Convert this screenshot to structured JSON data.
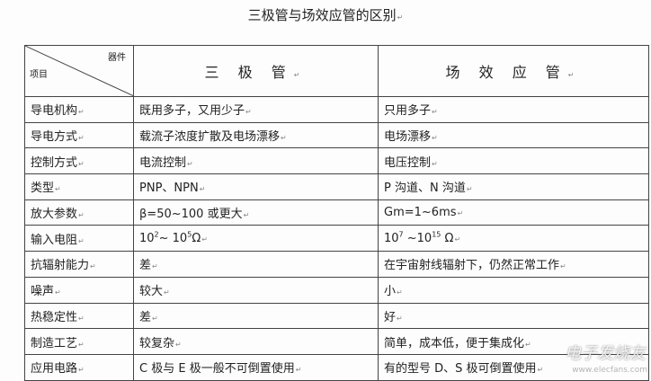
{
  "title": "三极管与场效应管的区别",
  "header": {
    "corner_top": "器件",
    "corner_bottom": "项目",
    "col1": "三 极 管",
    "col2": "场 效 应 管"
  },
  "rows": [
    {
      "item": "导电机构",
      "bjt": "既用多子，又用少子",
      "fet": "只用多子"
    },
    {
      "item": "导电方式",
      "bjt": "载流子浓度扩散及电场漂移",
      "fet": "电场漂移"
    },
    {
      "item": "控制方式",
      "bjt": "电流控制",
      "fet": "电压控制"
    },
    {
      "item": "类型",
      "bjt": "PNP、NPN",
      "fet": "P 沟道、N 沟道"
    },
    {
      "item": "放大参数",
      "bjt": "β=50~100 或更大",
      "fet": "Gm=1~6ms"
    },
    {
      "item": "输入电阻",
      "bjt": {
        "base1": "10",
        "exp1": "2",
        "mid": "~ 10",
        "exp2": "5",
        "unit": "Ω"
      },
      "fet": {
        "base1": "10",
        "exp1": "7",
        "mid": " ~10",
        "exp2": "15",
        "unit": " Ω"
      }
    },
    {
      "item": "抗辐射能力",
      "bjt": "差",
      "fet": "在宇宙射线辐射下，仍然正常工作"
    },
    {
      "item": "噪声",
      "bjt": "较大",
      "fet": "小"
    },
    {
      "item": "热稳定性",
      "bjt": "差",
      "fet": "好"
    },
    {
      "item": "制造工艺",
      "bjt": "较复杂",
      "fet": "简单，成本低，便于集成化"
    },
    {
      "item": "应用电路",
      "bjt": "C 极与 E 极一般不可倒置使用",
      "fet": "有的型号 D、S 极可倒置使用"
    }
  ],
  "watermark": {
    "logo": "电子发烧友",
    "url": "www.elecfans.com"
  }
}
